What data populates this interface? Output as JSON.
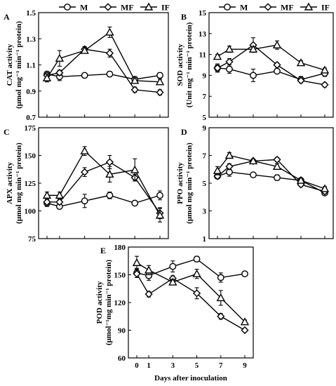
{
  "chart_data": [
    {
      "panel": "A",
      "type": "line",
      "ylabel_line1": "CAT activity",
      "ylabel_line2": "(μmol mg⁻¹ min⁻¹ protein)",
      "xlabel": "",
      "x": [
        0,
        1,
        3,
        5,
        7,
        9
      ],
      "ylim": [
        0.7,
        1.5
      ],
      "yticks": [
        0.7,
        0.9,
        1.1,
        1.3,
        1.5
      ],
      "ytick_labels": [
        "0.7",
        "0.9",
        "1.1",
        "1.3",
        "1.5"
      ],
      "series": [
        {
          "name": "M",
          "marker": "circle",
          "values": [
            1.03,
            1.01,
            1.02,
            1.03,
            0.99,
            1.02
          ],
          "err": [
            0.02,
            0.03,
            0.01,
            0.02,
            0.02,
            0.02
          ]
        },
        {
          "name": "MF",
          "marker": "diamond",
          "values": [
            1.02,
            1.04,
            1.22,
            1.19,
            0.91,
            0.89
          ],
          "err": [
            0.02,
            0.02,
            0.02,
            0.03,
            0.02,
            0.02
          ]
        },
        {
          "name": "IF",
          "marker": "triangle",
          "values": [
            1.0,
            1.15,
            1.21,
            1.35,
            0.98,
            0.97
          ],
          "err": [
            0.03,
            0.06,
            0.02,
            0.04,
            0.02,
            0.02
          ]
        }
      ]
    },
    {
      "panel": "B",
      "type": "line",
      "ylabel_line1": "SOD activity",
      "ylabel_line2": "(Unit mg⁻¹ min⁻¹ protein)",
      "xlabel": "",
      "x": [
        0,
        1,
        3,
        5,
        7,
        9
      ],
      "ylim": [
        5,
        15
      ],
      "yticks": [
        5,
        7,
        9,
        11,
        13,
        15
      ],
      "ytick_labels": [
        "5",
        "7",
        "9",
        "11",
        "13",
        "15"
      ],
      "series": [
        {
          "name": "M",
          "marker": "circle",
          "values": [
            9.7,
            9.6,
            9.0,
            9.4,
            8.6,
            9.2
          ],
          "err": [
            0.4,
            0.4,
            0.6,
            0.2,
            0.3,
            0.3
          ]
        },
        {
          "name": "MF",
          "marker": "diamond",
          "values": [
            9.7,
            10.3,
            11.9,
            10.0,
            8.5,
            8.1
          ],
          "err": [
            0.3,
            0.3,
            0.7,
            0.2,
            0.2,
            0.2
          ]
        },
        {
          "name": "IF",
          "marker": "triangle",
          "values": [
            10.8,
            11.5,
            11.5,
            11.9,
            10.2,
            9.5
          ],
          "err": [
            0.2,
            0.3,
            0.2,
            0.4,
            0.2,
            0.2
          ]
        }
      ]
    },
    {
      "panel": "C",
      "type": "line",
      "ylabel_line1": "APX activity",
      "ylabel_line2": "(μmol mg min⁻¹ protein)",
      "xlabel": "",
      "x": [
        0,
        1,
        3,
        5,
        7,
        9
      ],
      "ylim": [
        75,
        175
      ],
      "yticks": [
        75,
        100,
        125,
        150,
        175
      ],
      "ytick_labels": [
        "75",
        "100",
        "125",
        "150",
        "175"
      ],
      "series": [
        {
          "name": "M",
          "marker": "circle",
          "values": [
            107,
            104,
            109,
            114,
            107,
            114
          ],
          "err": [
            3,
            2,
            6,
            3,
            2,
            4
          ]
        },
        {
          "name": "MF",
          "marker": "diamond",
          "values": [
            108,
            108,
            135,
            144,
            130,
            98
          ],
          "err": [
            2,
            2,
            4,
            6,
            3,
            5
          ]
        },
        {
          "name": "IF",
          "marker": "triangle",
          "values": [
            114,
            114,
            154,
            133,
            137,
            96
          ],
          "err": [
            3,
            3,
            4,
            7,
            10,
            6
          ]
        }
      ]
    },
    {
      "panel": "D",
      "type": "line",
      "ylabel_line1": "PPO activity",
      "ylabel_line2": "(μmol mg min⁻¹ protein)",
      "xlabel": "",
      "x": [
        0,
        1,
        3,
        5,
        7,
        9
      ],
      "ylim": [
        1,
        9
      ],
      "yticks": [
        1,
        3,
        5,
        7,
        9
      ],
      "ytick_labels": [
        "1",
        "3",
        "5",
        "7",
        "9"
      ],
      "series": [
        {
          "name": "M",
          "marker": "circle",
          "values": [
            5.5,
            5.8,
            5.6,
            5.4,
            5.2,
            4.3
          ],
          "err": [
            0.15,
            0.3,
            0.15,
            0.2,
            0.15,
            0.15
          ]
        },
        {
          "name": "MF",
          "marker": "diamond",
          "values": [
            5.5,
            6.2,
            6.6,
            6.7,
            4.9,
            4.4
          ],
          "err": [
            0.15,
            0.2,
            0.15,
            0.15,
            0.15,
            0.15
          ]
        },
        {
          "name": "IF",
          "marker": "triangle",
          "values": [
            5.9,
            7.0,
            6.6,
            6.2,
            5.2,
            4.6
          ],
          "err": [
            0.3,
            0.2,
            0.15,
            0.2,
            0.15,
            0.15
          ]
        }
      ]
    },
    {
      "panel": "E",
      "type": "line",
      "ylabel_line1": "POD activity",
      "ylabel_line2": "(μmol⁻¹mg min⁻¹ protein)",
      "xlabel": "Days  after inoculation",
      "x": [
        0,
        1,
        3,
        5,
        7,
        9
      ],
      "xtick_labels": [
        "0",
        "1",
        "3",
        "5",
        "7",
        "9"
      ],
      "ylim": [
        60,
        180
      ],
      "yticks": [
        60,
        90,
        120,
        150,
        180
      ],
      "ytick_labels": [
        "60",
        "90",
        "120",
        "150",
        "180"
      ],
      "series": [
        {
          "name": "M",
          "marker": "circle",
          "values": [
            152,
            149,
            159,
            167,
            147,
            151
          ],
          "err": [
            5,
            5,
            6,
            3,
            5,
            2
          ]
        },
        {
          "name": "MF",
          "marker": "diamond",
          "values": [
            151,
            129,
            146,
            130,
            105,
            90
          ],
          "err": [
            4,
            3,
            3,
            6,
            3,
            2
          ]
        },
        {
          "name": "IF",
          "marker": "triangle",
          "values": [
            163,
            155,
            142,
            151,
            125,
            99
          ],
          "err": [
            7,
            5,
            3,
            5,
            8,
            2
          ]
        }
      ]
    }
  ],
  "legend": {
    "entries": [
      "M",
      "MF",
      "IF"
    ]
  }
}
